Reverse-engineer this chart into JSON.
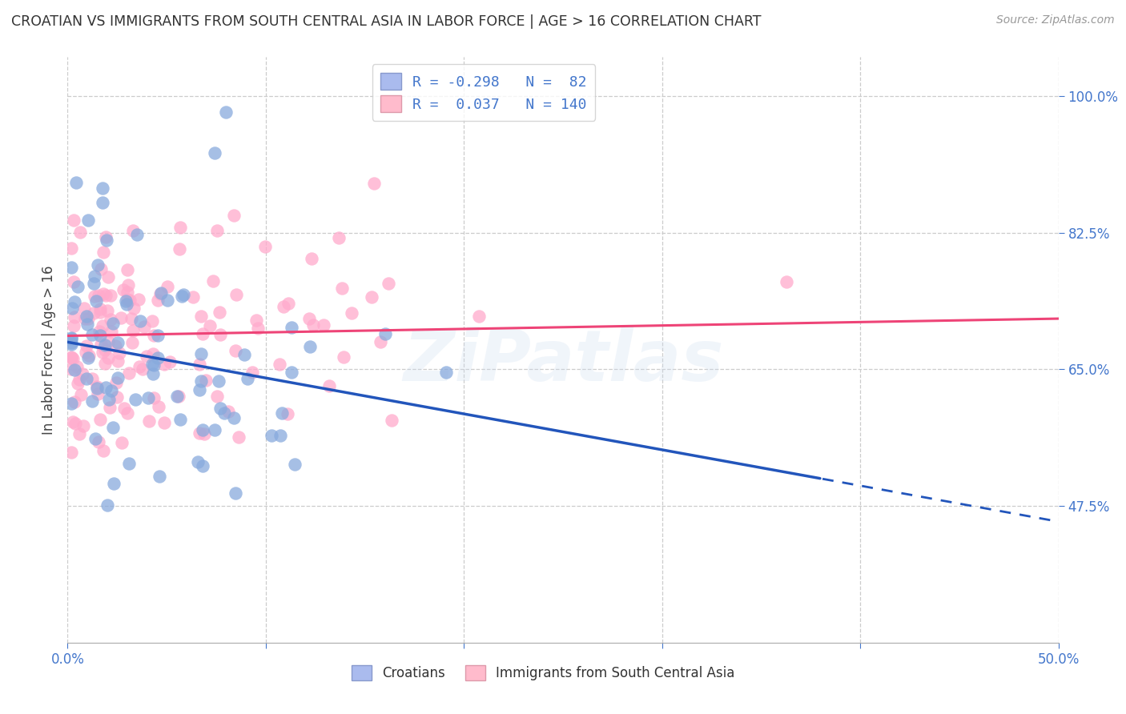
{
  "title": "CROATIAN VS IMMIGRANTS FROM SOUTH CENTRAL ASIA IN LABOR FORCE | AGE > 16 CORRELATION CHART",
  "source": "Source: ZipAtlas.com",
  "ylabel": "In Labor Force | Age > 16",
  "xlim": [
    0.0,
    0.5
  ],
  "ylim": [
    0.3,
    1.05
  ],
  "ytick_labels_right": [
    "47.5%",
    "65.0%",
    "82.5%",
    "100.0%"
  ],
  "ytick_positions_right": [
    0.475,
    0.65,
    0.825,
    1.0
  ],
  "xtick_positions": [
    0.0,
    0.1,
    0.2,
    0.3,
    0.4,
    0.5
  ],
  "xtick_labels_show": [
    "0.0%",
    "",
    "",
    "",
    "",
    "50.0%"
  ],
  "grid_color": "#cccccc",
  "background_color": "#ffffff",
  "blue_scatter_color": "#88aadd",
  "pink_scatter_color": "#ffaacc",
  "blue_line_color": "#2255bb",
  "pink_line_color": "#ee4477",
  "legend_blue_R": "-0.298",
  "legend_blue_N": "82",
  "legend_pink_R": "0.037",
  "legend_pink_N": "140",
  "label_croatians": "Croatians",
  "label_immigrants": "Immigrants from South Central Asia",
  "title_color": "#333333",
  "axis_label_color": "#4477cc",
  "watermark_text": "ZiPatlas",
  "blue_line_x0": 0.0,
  "blue_line_y0": 0.685,
  "blue_line_x1": 0.5,
  "blue_line_y1": 0.455,
  "blue_line_solid_end": 0.38,
  "pink_line_x0": 0.0,
  "pink_line_y0": 0.693,
  "pink_line_x1": 0.5,
  "pink_line_y1": 0.715
}
